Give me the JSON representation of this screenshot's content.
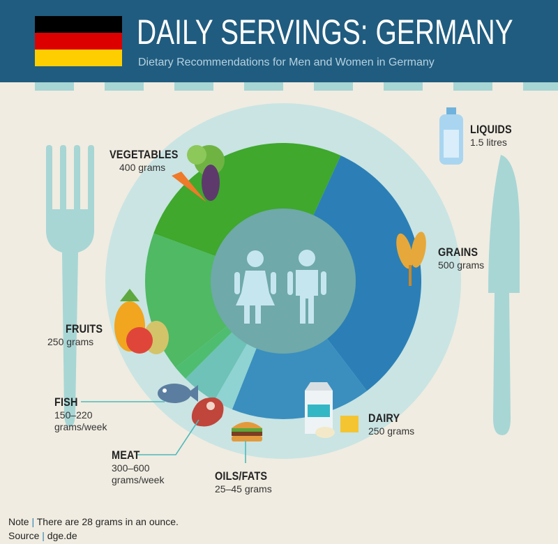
{
  "header": {
    "title": "DAILY SERVINGS: GERMANY",
    "subtitle": "Dietary Recommendations for Men and Women in Germany",
    "flag_colors": [
      "#000000",
      "#dd0000",
      "#ffce00"
    ]
  },
  "chart_data": {
    "type": "pie",
    "categories": [
      "VEGETABLES",
      "GRAINS",
      "DAIRY",
      "OILS/FATS",
      "MEAT",
      "FISH",
      "FRUITS"
    ],
    "values": [
      400,
      500,
      250,
      35,
      64,
      26,
      250
    ],
    "units": [
      "400 grams",
      "500 grams",
      "250 grams",
      "25–45 grams",
      "300–600 grams/week",
      "150–220 grams/week",
      "250 grams"
    ],
    "colors": [
      "#3fa82d",
      "#2b7fb6",
      "#3a8fbf",
      "#8fd3d2",
      "#6ec2b8",
      "#4fbd70",
      "#4fb964"
    ],
    "extra": {
      "label": "LIQUIDS",
      "value": "1.5 litres"
    }
  },
  "labels": {
    "vegetables": {
      "title": "VEGETABLES",
      "value": "400 grams"
    },
    "grains": {
      "title": "GRAINS",
      "value": "500 grams"
    },
    "fruits": {
      "title": "FRUITS",
      "value": "250 grams"
    },
    "fish": {
      "title": "FISH",
      "value_l1": "150–220",
      "value_l2": "grams/week"
    },
    "meat": {
      "title": "MEAT",
      "value_l1": "300–600",
      "value_l2": "grams/week"
    },
    "oils": {
      "title": "OILS/FATS",
      "value": "25–45 grams"
    },
    "dairy": {
      "title": "DAIRY",
      "value": "250 grams"
    },
    "liquids": {
      "title": "LIQUIDS",
      "value": "1.5 litres"
    }
  },
  "footer": {
    "note_label": "Note",
    "note_text": "There are 28 grams in an ounce.",
    "source_label": "Source",
    "source_text": "dge.de"
  }
}
